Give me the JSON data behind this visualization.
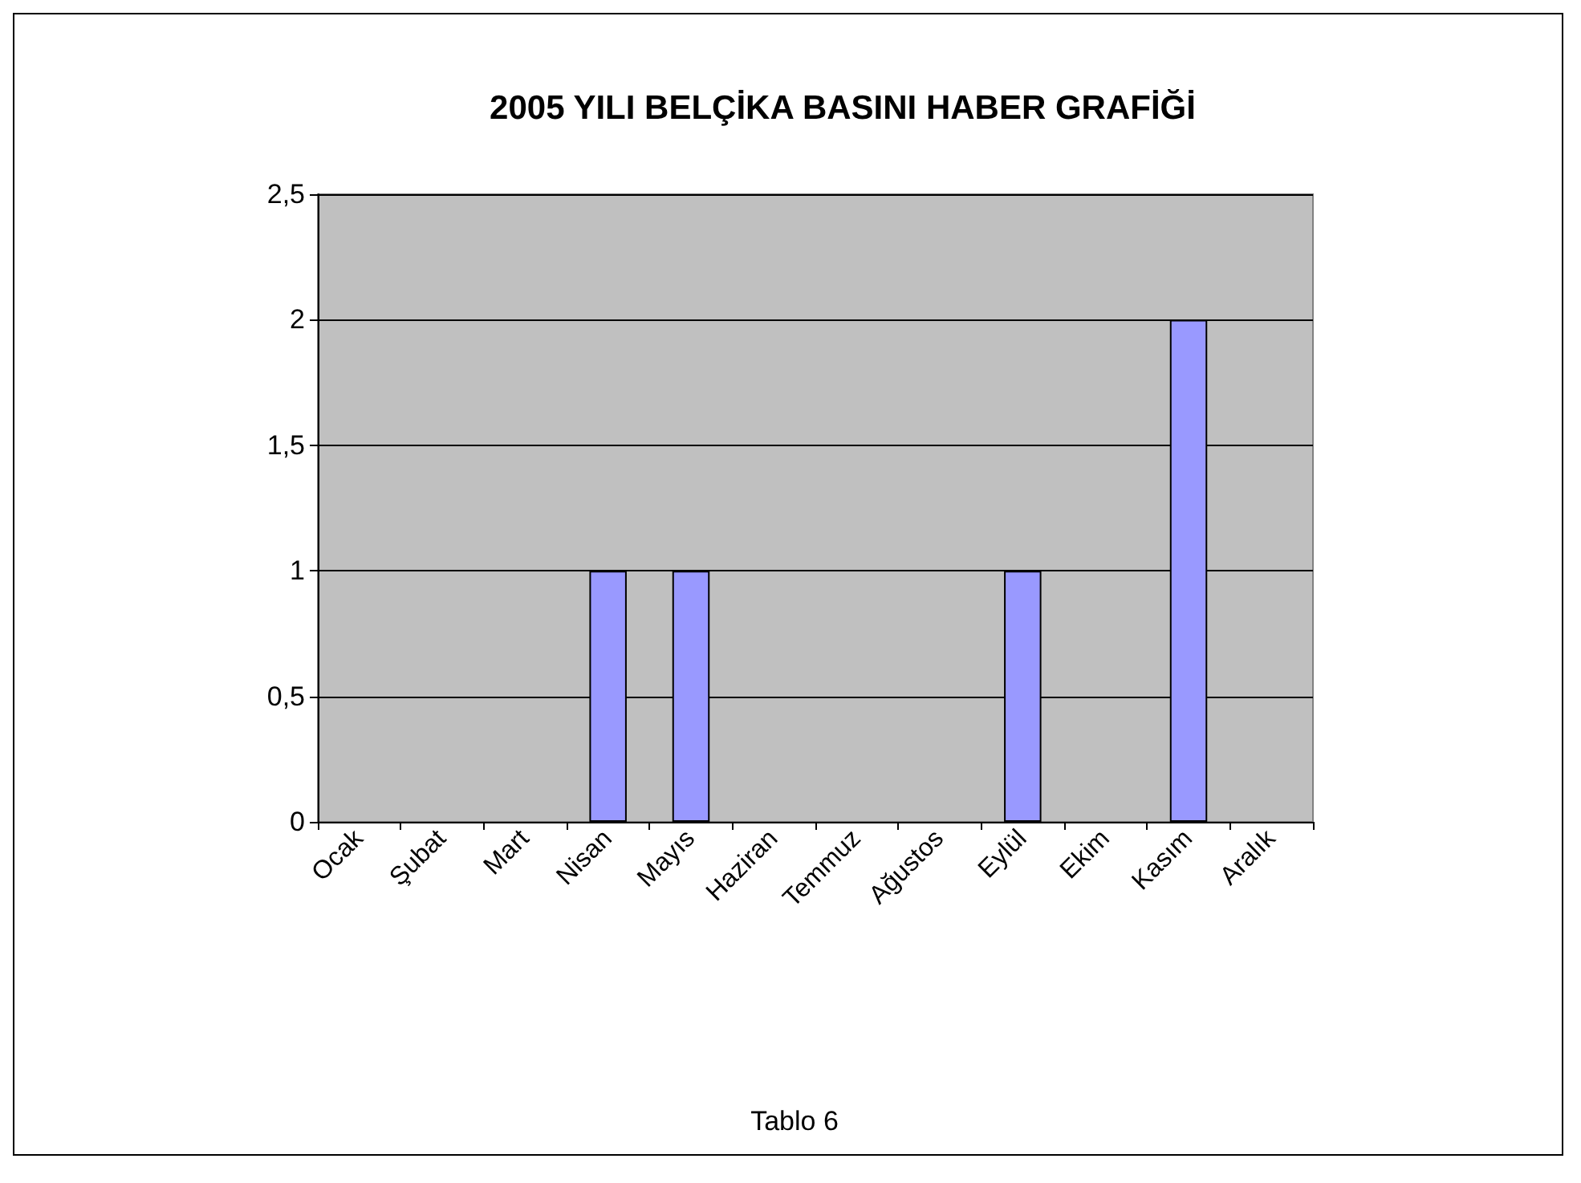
{
  "chart_data": {
    "type": "bar",
    "title": "2005 YILI BELÇİKA BASINI HABER GRAFİĞİ",
    "categories": [
      "Ocak",
      "Şubat",
      "Mart",
      "Nisan",
      "Mayıs",
      "Haziran",
      "Temmuz",
      "Ağustos",
      "Eylül",
      "Ekim",
      "Kasım",
      "Aralık"
    ],
    "values": [
      0,
      0,
      0,
      1,
      1,
      0,
      0,
      0,
      1,
      0,
      2,
      0
    ],
    "color": "#9999ff",
    "ylim": [
      0,
      2.5
    ],
    "yticks": [
      0,
      {
        "value": 0.5,
        "label": "0,5"
      },
      1,
      {
        "value": 1.5,
        "label": "1,5"
      },
      2,
      {
        "value": 2.5,
        "label": "2,5"
      }
    ],
    "grid": "y",
    "annotations": [
      "Tablo 6"
    ]
  }
}
